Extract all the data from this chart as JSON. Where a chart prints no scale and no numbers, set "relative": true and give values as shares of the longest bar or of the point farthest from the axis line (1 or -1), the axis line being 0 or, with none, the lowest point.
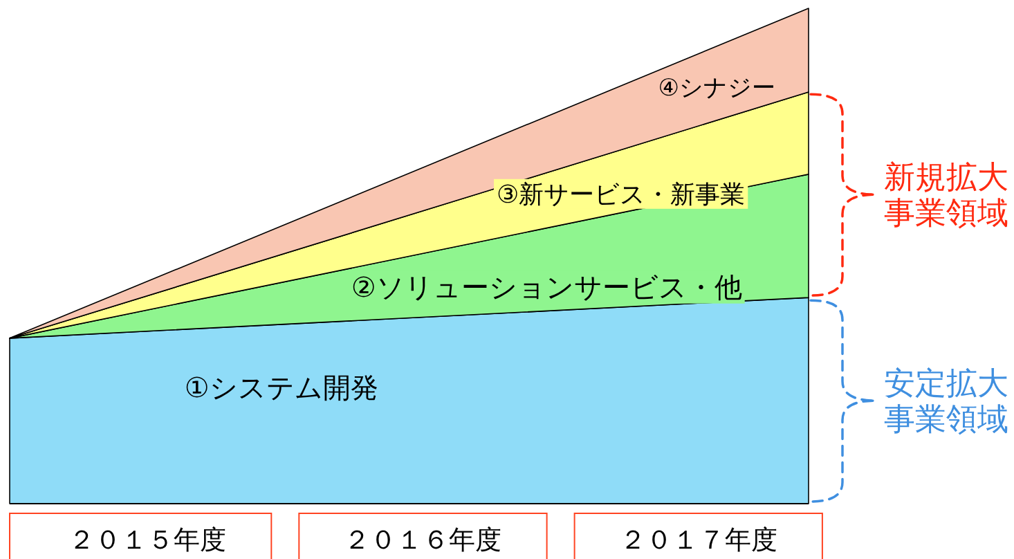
{
  "chart_data": {
    "type": "area",
    "stacked": true,
    "relative": true,
    "x": [
      2014.5,
      2017.4
    ],
    "xlim": [
      2014.5,
      2017.4
    ],
    "xticks": [
      {
        "value": 2015,
        "label": "２０１５年度"
      },
      {
        "value": 2016,
        "label": "２０１６年度"
      },
      {
        "value": 2017,
        "label": "２０１７年度"
      }
    ],
    "series": [
      {
        "name": "①システム開発",
        "color": "#8fdcf8",
        "values": [
          0.334,
          0.416
        ]
      },
      {
        "name": "②ソリューションサービス・他",
        "color": "#8ff58f",
        "values": [
          0,
          0.249
        ]
      },
      {
        "name": "③新サービス・新事業",
        "color": "#ffff8c",
        "values": [
          0,
          0.166
        ]
      },
      {
        "name": "④シナジー",
        "color": "#f9c6b2",
        "values": [
          0,
          0.169
        ]
      }
    ],
    "annotations": [
      {
        "text": "新規拡大事業領域",
        "x": 2017.4,
        "y": 0.624
      },
      {
        "text": "安定拡大事業領域",
        "x": 2017.4,
        "y": 0.208
      }
    ]
  }
}
